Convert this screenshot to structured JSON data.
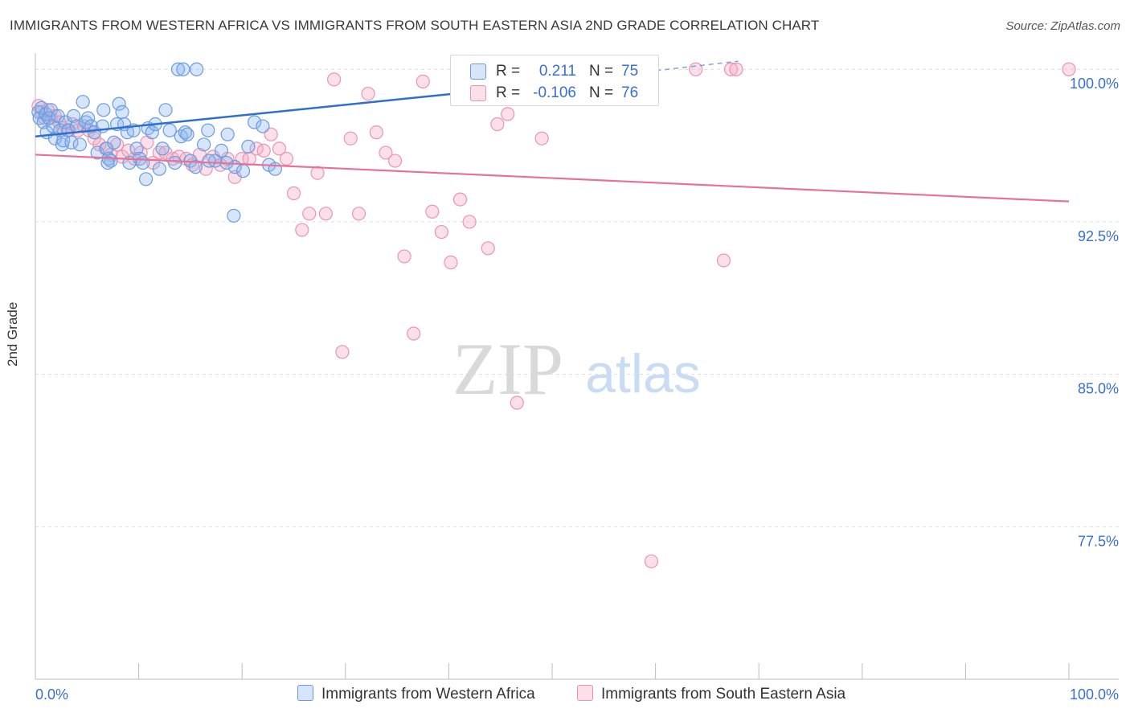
{
  "title": "IMMIGRANTS FROM WESTERN AFRICA VS IMMIGRANTS FROM SOUTH EASTERN ASIA 2ND GRADE CORRELATION CHART",
  "source": "Source: ZipAtlas.com",
  "watermark": {
    "zip": "ZIP",
    "atlas": "atlas"
  },
  "legend_top": [
    {
      "r_label": "R =",
      "r_value": "0.211",
      "n_label": "N =",
      "n_value": "75",
      "color": "#8ab4ef"
    },
    {
      "r_label": "R =",
      "r_value": "-0.106",
      "n_label": "N =",
      "n_value": "76",
      "color": "#f4a7c0"
    }
  ],
  "legend_bottom": [
    {
      "label": "Immigrants from Western Africa",
      "color": "#8ab4ef"
    },
    {
      "label": "Immigrants from South Eastern Asia",
      "color": "#f4a7c0"
    }
  ],
  "colors": {
    "blue_fill": "rgba(138,180,239,0.35)",
    "blue_stroke": "#6a9be0",
    "blue_line": "#2e6fcf",
    "pink_fill": "rgba(244,167,192,0.35)",
    "pink_stroke": "#ec93b2",
    "pink_line": "#e8719a",
    "grid": "#dcdcdc",
    "axis_text": "#3a6fd0"
  },
  "chart_data": {
    "type": "scatter",
    "title": "IMMIGRANTS FROM WESTERN AFRICA VS IMMIGRANTS FROM SOUTH EASTERN ASIA 2ND GRADE CORRELATION CHART",
    "xlabel": "",
    "ylabel": "2nd Grade",
    "xlim": [
      0,
      100
    ],
    "ylim": [
      70.0,
      100.8
    ],
    "x_tick_labels": [
      {
        "value": 0,
        "label": "0.0%"
      },
      {
        "value": 100,
        "label": "100.0%"
      }
    ],
    "y_ticks": [
      {
        "value": 100.0,
        "label": "100.0%"
      },
      {
        "value": 92.5,
        "label": "92.5%"
      },
      {
        "value": 85.0,
        "label": "85.0%"
      },
      {
        "value": 77.5,
        "label": "77.5%"
      }
    ],
    "series": [
      {
        "name": "Immigrants from Western Africa",
        "r": 0.211,
        "n": 75,
        "trend": {
          "x0": 0,
          "y0": 96.7,
          "x1": 40.5,
          "y1": 98.8,
          "dash_to_x": 68,
          "dash_to_y": 100.4
        },
        "points": [
          [
            0.3,
            97.9
          ],
          [
            0.4,
            97.6
          ],
          [
            0.6,
            98.1
          ],
          [
            0.8,
            97.4
          ],
          [
            1.0,
            97.8
          ],
          [
            1.1,
            96.9
          ],
          [
            1.3,
            97.6
          ],
          [
            1.5,
            98.0
          ],
          [
            1.7,
            97.2
          ],
          [
            1.9,
            96.6
          ],
          [
            2.2,
            97.7
          ],
          [
            2.4,
            97.0
          ],
          [
            2.6,
            96.3
          ],
          [
            2.7,
            96.5
          ],
          [
            2.9,
            97.4
          ],
          [
            3.2,
            97.0
          ],
          [
            3.5,
            96.4
          ],
          [
            3.7,
            97.7
          ],
          [
            4.0,
            97.2
          ],
          [
            4.3,
            96.3
          ],
          [
            4.6,
            98.4
          ],
          [
            4.9,
            97.4
          ],
          [
            5.1,
            97.6
          ],
          [
            5.4,
            97.2
          ],
          [
            5.7,
            96.9
          ],
          [
            6.0,
            95.9
          ],
          [
            6.5,
            97.2
          ],
          [
            6.6,
            98.0
          ],
          [
            6.9,
            96.1
          ],
          [
            7.1,
            95.6
          ],
          [
            7.3,
            95.5
          ],
          [
            7.6,
            96.4
          ],
          [
            7.9,
            97.3
          ],
          [
            8.1,
            98.3
          ],
          [
            8.4,
            97.9
          ],
          [
            8.6,
            97.3
          ],
          [
            8.9,
            96.9
          ],
          [
            9.1,
            95.4
          ],
          [
            9.5,
            97.0
          ],
          [
            9.8,
            96.1
          ],
          [
            10.1,
            95.6
          ],
          [
            10.4,
            95.4
          ],
          [
            10.9,
            97.1
          ],
          [
            11.3,
            96.9
          ],
          [
            11.6,
            97.3
          ],
          [
            12.0,
            95.1
          ],
          [
            12.3,
            96.1
          ],
          [
            12.6,
            98.0
          ],
          [
            13.0,
            97.0
          ],
          [
            13.5,
            95.4
          ],
          [
            14.1,
            96.7
          ],
          [
            14.5,
            96.9
          ],
          [
            15.0,
            95.5
          ],
          [
            15.5,
            95.2
          ],
          [
            16.3,
            96.3
          ],
          [
            16.7,
            97.0
          ],
          [
            17.4,
            95.5
          ],
          [
            18.0,
            96.0
          ],
          [
            18.6,
            96.8
          ],
          [
            19.3,
            95.2
          ],
          [
            20.1,
            95.0
          ],
          [
            20.6,
            96.2
          ],
          [
            21.2,
            97.4
          ],
          [
            22.0,
            97.2
          ],
          [
            22.6,
            95.3
          ],
          [
            23.2,
            95.1
          ],
          [
            13.8,
            100.0
          ],
          [
            14.3,
            100.0
          ],
          [
            15.6,
            100.0
          ],
          [
            14.7,
            96.8
          ],
          [
            16.8,
            95.5
          ],
          [
            18.5,
            95.4
          ],
          [
            7.0,
            95.4
          ],
          [
            10.7,
            94.6
          ],
          [
            19.2,
            92.8
          ]
        ]
      },
      {
        "name": "Immigrants from South Eastern Asia",
        "r": -0.106,
        "n": 76,
        "trend": {
          "x0": 0,
          "y0": 95.8,
          "x1": 100,
          "y1": 93.5
        },
        "points": [
          [
            0.3,
            98.2
          ],
          [
            0.6,
            97.9
          ],
          [
            0.9,
            97.6
          ],
          [
            1.2,
            98.0
          ],
          [
            1.5,
            97.6
          ],
          [
            1.9,
            97.7
          ],
          [
            2.3,
            97.4
          ],
          [
            2.7,
            97.1
          ],
          [
            3.1,
            97.0
          ],
          [
            3.6,
            97.3
          ],
          [
            4.1,
            97.0
          ],
          [
            4.7,
            97.2
          ],
          [
            5.2,
            97.0
          ],
          [
            5.7,
            96.6
          ],
          [
            6.2,
            96.3
          ],
          [
            6.8,
            96.1
          ],
          [
            7.3,
            95.8
          ],
          [
            7.9,
            96.3
          ],
          [
            8.4,
            95.7
          ],
          [
            9.0,
            96.0
          ],
          [
            9.6,
            95.6
          ],
          [
            10.2,
            95.9
          ],
          [
            10.8,
            96.4
          ],
          [
            11.4,
            95.4
          ],
          [
            12.0,
            95.9
          ],
          [
            12.6,
            95.9
          ],
          [
            13.3,
            95.6
          ],
          [
            13.9,
            95.7
          ],
          [
            14.6,
            95.6
          ],
          [
            15.2,
            95.3
          ],
          [
            15.9,
            95.8
          ],
          [
            16.5,
            95.1
          ],
          [
            17.2,
            95.7
          ],
          [
            17.9,
            95.3
          ],
          [
            18.6,
            95.6
          ],
          [
            19.3,
            94.7
          ],
          [
            20.0,
            95.6
          ],
          [
            20.7,
            95.6
          ],
          [
            21.4,
            96.1
          ],
          [
            22.1,
            96.0
          ],
          [
            22.8,
            96.8
          ],
          [
            23.6,
            96.1
          ],
          [
            24.3,
            95.6
          ],
          [
            25.0,
            93.9
          ],
          [
            25.8,
            92.1
          ],
          [
            26.5,
            92.9
          ],
          [
            27.3,
            94.9
          ],
          [
            28.1,
            92.9
          ],
          [
            28.9,
            99.5
          ],
          [
            29.7,
            86.1
          ],
          [
            30.5,
            96.6
          ],
          [
            31.3,
            92.9
          ],
          [
            32.2,
            98.8
          ],
          [
            33.0,
            96.9
          ],
          [
            33.9,
            95.9
          ],
          [
            34.8,
            95.5
          ],
          [
            35.7,
            90.8
          ],
          [
            36.6,
            87.0
          ],
          [
            37.5,
            99.4
          ],
          [
            38.4,
            93.0
          ],
          [
            39.3,
            92.0
          ],
          [
            40.2,
            90.5
          ],
          [
            41.1,
            93.6
          ],
          [
            42.0,
            92.5
          ],
          [
            42.9,
            98.6
          ],
          [
            43.8,
            91.2
          ],
          [
            44.7,
            97.3
          ],
          [
            45.7,
            97.8
          ],
          [
            46.6,
            83.6
          ],
          [
            49.0,
            96.6
          ],
          [
            66.6,
            90.6
          ],
          [
            59.6,
            75.8
          ],
          [
            63.9,
            100.0
          ],
          [
            67.3,
            100.0
          ],
          [
            67.8,
            100.0
          ],
          [
            100.0,
            100.0
          ]
        ]
      }
    ]
  }
}
